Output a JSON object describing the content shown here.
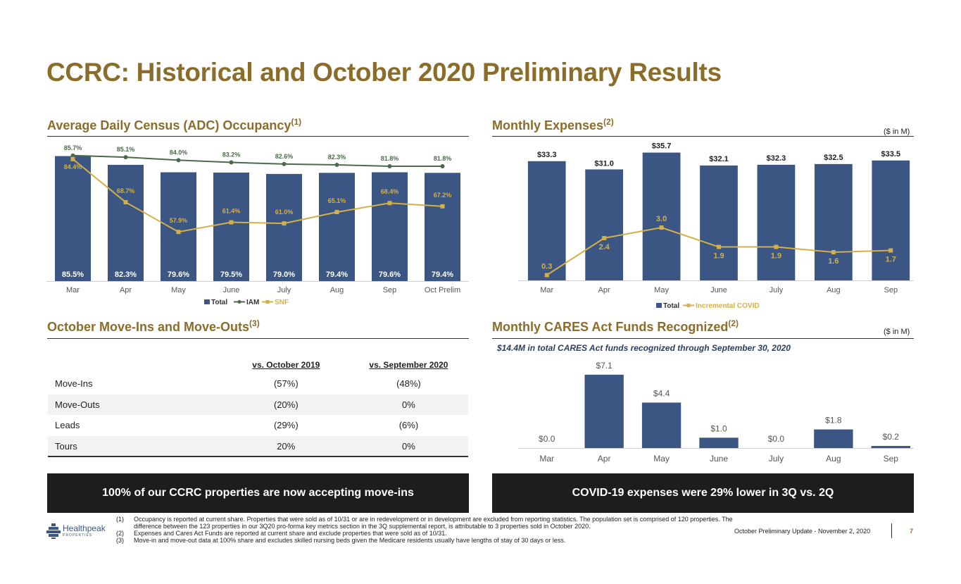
{
  "page": {
    "title": "CCRC: Historical and October 2020 Preliminary Results",
    "footer_text": "October Preliminary Update - November 2, 2020",
    "page_number": "7",
    "logo": {
      "name": "Healthpeak",
      "sub": "PROPERTIES",
      "icon": "healthpeak-logo-icon"
    }
  },
  "sections": {
    "adc": {
      "title": "Average Daily Census (ADC) Occupancy",
      "note": "(1)"
    },
    "expenses": {
      "title": "Monthly Expenses",
      "note": "(2)",
      "unit": "($ in M)"
    },
    "moves": {
      "title": "October Move-Ins and Move-Outs",
      "note": "(3)"
    },
    "cares": {
      "title": "Monthly CARES Act Funds Recognized",
      "note": "(2)",
      "unit": "($ in M)",
      "subtitle": "$14.4M in total CARES Act funds recognized through September 30, 2020"
    }
  },
  "colors": {
    "navy": "#3b5683",
    "green": "#4b6b4a",
    "gold": "#d3b04a",
    "heading": "#8a6d2a"
  },
  "chart_data": [
    {
      "type": "bar",
      "categories": [
        "Mar",
        "Apr",
        "May",
        "June",
        "July",
        "Aug",
        "Sep",
        "Oct Prelim"
      ],
      "ylim": [
        40,
        90
      ],
      "series": [
        {
          "name": "Total",
          "type": "bar",
          "values": [
            85.5,
            82.3,
            79.6,
            79.5,
            79.0,
            79.4,
            79.6,
            79.4
          ],
          "labels": [
            "85.5%",
            "82.3%",
            "79.6%",
            "79.5%",
            "79.0%",
            "79.4%",
            "79.6%",
            "79.4%"
          ]
        },
        {
          "name": "IAM",
          "type": "line",
          "values": [
            85.7,
            85.1,
            84.0,
            83.2,
            82.6,
            82.3,
            81.8,
            81.8
          ],
          "labels": [
            "85.7%",
            "85.1%",
            "84.0%",
            "83.2%",
            "82.6%",
            "82.3%",
            "81.8%",
            "81.8%"
          ]
        },
        {
          "name": "SNF",
          "type": "line",
          "values": [
            84.4,
            68.7,
            57.9,
            61.4,
            61.0,
            65.1,
            68.4,
            67.2
          ],
          "labels": [
            "84.4%",
            "68.7%",
            "57.9%",
            "61.4%",
            "61.0%",
            "65.1%",
            "68.4%",
            "67.2%"
          ]
        }
      ]
    },
    {
      "type": "bar",
      "categories": [
        "Mar",
        "Apr",
        "May",
        "June",
        "July",
        "Aug",
        "Sep"
      ],
      "ylim": [
        0,
        37
      ],
      "series": [
        {
          "name": "Total",
          "type": "bar",
          "values": [
            33.3,
            31.0,
            35.7,
            32.1,
            32.3,
            32.5,
            33.5
          ],
          "labels": [
            "$33.3",
            "$31.0",
            "$35.7",
            "$32.1",
            "$32.3",
            "$32.5",
            "$33.5"
          ]
        },
        {
          "name": "Incremental COVID",
          "type": "line",
          "values": [
            0.3,
            2.4,
            3.0,
            1.9,
            1.9,
            1.6,
            1.7
          ],
          "labels": [
            "0.3",
            "2.4",
            "3.0",
            "1.9",
            "1.9",
            "1.6",
            "1.7"
          ]
        }
      ]
    },
    {
      "type": "bar",
      "categories": [
        "Mar",
        "Apr",
        "May",
        "June",
        "July",
        "Aug",
        "Sep"
      ],
      "ylim": [
        0,
        7.5
      ],
      "series": [
        {
          "type": "bar",
          "values": [
            0.0,
            7.1,
            4.4,
            1.0,
            0.0,
            1.8,
            0.2
          ],
          "labels": [
            "$0.0",
            "$7.1",
            "$4.4",
            "$1.0",
            "$0.0",
            "$1.8",
            "$0.2"
          ]
        }
      ]
    }
  ],
  "table": {
    "headers": [
      "",
      "vs. October 2019",
      "vs. September 2020"
    ],
    "rows": [
      [
        "Move-Ins",
        "(57%)",
        "(48%)"
      ],
      [
        "Move-Outs",
        "(20%)",
        "0%"
      ],
      [
        "Leads",
        "(29%)",
        "(6%)"
      ],
      [
        "Tours",
        "20%",
        "0%"
      ]
    ]
  },
  "banners": {
    "left": "100% of our CCRC properties are now accepting move-ins",
    "right": "COVID-19 expenses were 29% lower in 3Q vs. 2Q"
  },
  "footnotes": [
    {
      "num": "(1)",
      "text": "Occupancy is reported at current share. Properties that were sold as of 10/31 or are in redevelopment or in development are excluded from reporting statistics. The population set is comprised of 120 properties. The",
      "text2": "difference between the 123 properties in our 3Q20 pro-forma key metrics section in the 3Q supplemental report, is attributable to 3 properties sold in October 2020."
    },
    {
      "num": "(2)",
      "text": "Expenses and Cares Act Funds are reported at current share and exclude properties that were sold as of 10/31."
    },
    {
      "num": "(3)",
      "text": "Move-in and move-out data at 100% share and excludes skilled nursing beds given the Medicare residents usually have lengths of stay of 30 days or less."
    }
  ]
}
